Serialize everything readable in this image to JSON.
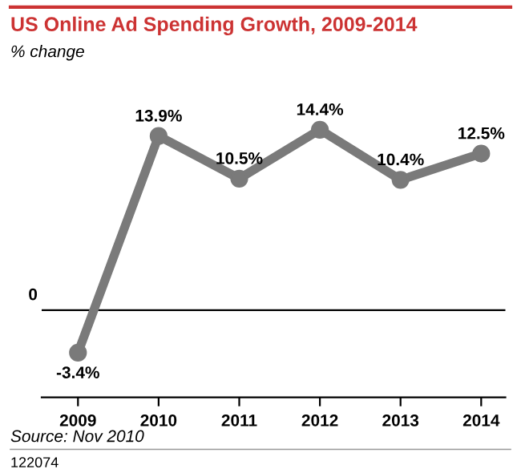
{
  "chart_data": {
    "type": "line",
    "title": "US Online Ad Spending Growth, 2009-2014",
    "subtitle": "% change",
    "categories": [
      "2009",
      "2010",
      "2011",
      "2012",
      "2013",
      "2014"
    ],
    "series": [
      {
        "color": "#7a7a7a",
        "values": [
          -3.4,
          13.9,
          10.5,
          14.4,
          10.4,
          12.5
        ],
        "value_labels": [
          "-3.4%",
          "13.9%",
          "10.5%",
          "14.4%",
          "10.4%",
          "12.5%"
        ]
      }
    ],
    "ref_lines": [
      {
        "axis": "y",
        "value": 0,
        "label": "0",
        "color": "#000000"
      }
    ],
    "marker": "circle",
    "line_style": "solid",
    "grid": false,
    "legend": false,
    "tick_labels": "x",
    "annotations": [
      "Source: Nov 2010",
      "122074"
    ]
  }
}
